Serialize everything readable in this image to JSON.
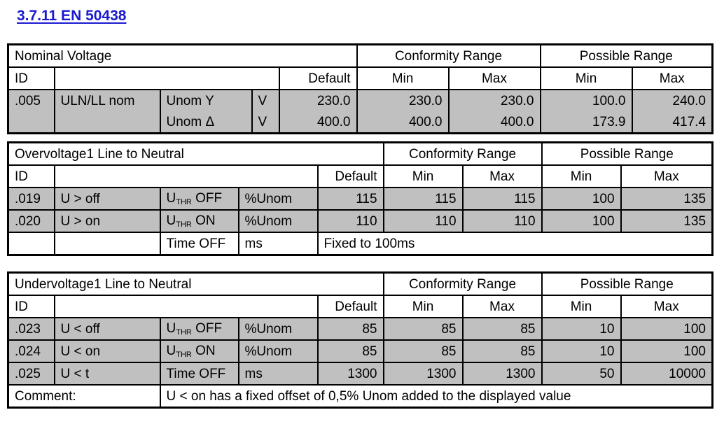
{
  "heading": "3.7.11 EN 50438",
  "nominal": {
    "title": "Nominal Voltage",
    "conformity_range": "Conformity Range",
    "possible_range": "Possible Range",
    "id_label": "ID",
    "default_label": "Default",
    "min_label": "Min",
    "max_label": "Max",
    "rows": [
      {
        "id": ".005",
        "name": "ULN/LL nom",
        "param": "Unom Y",
        "unit": "V",
        "default": "230.0",
        "conf_min": "230.0",
        "conf_max": "230.0",
        "poss_min": "100.0",
        "poss_max": "240.0"
      },
      {
        "id": "",
        "name": "",
        "param": "Unom Δ",
        "unit": "V",
        "default": "400.0",
        "conf_min": "400.0",
        "conf_max": "400.0",
        "poss_min": "173.9",
        "poss_max": "417.4"
      }
    ]
  },
  "overvoltage": {
    "title": "Overvoltage1 Line to Neutral",
    "conformity_range": "Conformity Range",
    "possible_range": "Possible Range",
    "id_label": "ID",
    "default_label": "Default",
    "min_label": "Min",
    "max_label": "Max",
    "rows": [
      {
        "id": ".019",
        "name": "U > off",
        "param_main": "U",
        "param_sub": "THR",
        "param_suffix": " OFF",
        "unit": "%Unom",
        "default": "115",
        "conf_min": "115",
        "conf_max": "115",
        "poss_min": "100",
        "poss_max": "135"
      },
      {
        "id": ".020",
        "name": "U > on",
        "param_main": "U",
        "param_sub": "THR",
        "param_suffix": " ON",
        "unit": "%Unom",
        "default": "110",
        "conf_min": "110",
        "conf_max": "110",
        "poss_min": "100",
        "poss_max": "135"
      }
    ],
    "time_row": {
      "param": "Time OFF",
      "unit": "ms",
      "note": "Fixed to 100ms"
    }
  },
  "undervoltage": {
    "title": "Undervoltage1 Line to Neutral",
    "conformity_range": "Conformity Range",
    "possible_range": "Possible Range",
    "id_label": "ID",
    "default_label": "Default",
    "min_label": "Min",
    "max_label": "Max",
    "rows": [
      {
        "id": ".023",
        "name": "U < off",
        "param_main": "U",
        "param_sub": "THR",
        "param_suffix": " OFF",
        "unit": "%Unom",
        "default": "85",
        "conf_min": "85",
        "conf_max": "85",
        "poss_min": "10",
        "poss_max": "100"
      },
      {
        "id": ".024",
        "name": "U < on",
        "param_main": "U",
        "param_sub": "THR",
        "param_suffix": " ON",
        "unit": "%Unom",
        "default": "85",
        "conf_min": "85",
        "conf_max": "85",
        "poss_min": "10",
        "poss_max": "100"
      },
      {
        "id": ".025",
        "name": "U < t",
        "param": "Time OFF",
        "unit": "ms",
        "default": "1300",
        "conf_min": "1300",
        "conf_max": "1300",
        "poss_min": "50",
        "poss_max": "10000"
      }
    ],
    "comment_label": "Comment:",
    "comment_text": "U < on has a fixed offset of 0,5% Unom added to the displayed value"
  }
}
